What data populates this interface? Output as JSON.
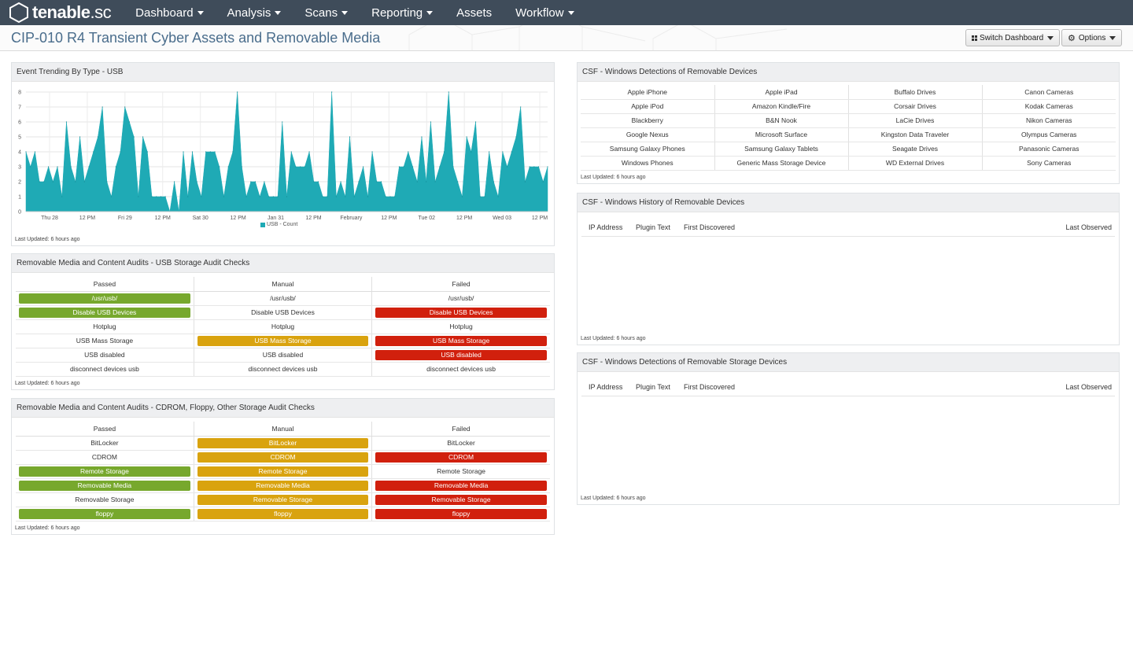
{
  "app": {
    "logo_text": "tenable",
    "logo_suffix": ".sc"
  },
  "nav": [
    {
      "label": "Dashboard",
      "dropdown": true
    },
    {
      "label": "Analysis",
      "dropdown": true
    },
    {
      "label": "Scans",
      "dropdown": true
    },
    {
      "label": "Reporting",
      "dropdown": true
    },
    {
      "label": "Assets",
      "dropdown": false
    },
    {
      "label": "Workflow",
      "dropdown": true
    }
  ],
  "page": {
    "title": "CIP-010 R4 Transient Cyber Assets and Removable Media",
    "switch_label": "Switch Dashboard",
    "options_label": "Options"
  },
  "colors": {
    "nav_bg": "#3f4c5a",
    "chart_fill": "#1faab5",
    "passed": "#77a82d",
    "manual": "#d9a30f",
    "failed": "#d1200d",
    "title": "#4a6d8c"
  },
  "icons": [
    "tenable-hexagon-icon",
    "grid-icon",
    "gear-icon",
    "caret-down-icon"
  ],
  "last_updated": "Last Updated: 6 hours ago",
  "event_chart": {
    "title": "Event Trending By Type - USB",
    "chart_data": {
      "type": "area",
      "series": [
        {
          "name": "USB - Count",
          "values": [
            4,
            3,
            4,
            2,
            2,
            3,
            2,
            3,
            1,
            6,
            3,
            2,
            5,
            2,
            3,
            4,
            5,
            7,
            2,
            1,
            3,
            4,
            7,
            6,
            5,
            1,
            5,
            4,
            1,
            1,
            1,
            1,
            0,
            2,
            0,
            4,
            1,
            4,
            2,
            1,
            4,
            4,
            4,
            3,
            1,
            3,
            4,
            8,
            3,
            1,
            2,
            2,
            1,
            2,
            1,
            1,
            1,
            6,
            1,
            4,
            3,
            3,
            3,
            4,
            2,
            2,
            1,
            1,
            8,
            1,
            2,
            1,
            5,
            1,
            2,
            3,
            1,
            4,
            2,
            2,
            1,
            1,
            1,
            3,
            3,
            4,
            3,
            2,
            5,
            2,
            6,
            2,
            3,
            4,
            8,
            3,
            2,
            1,
            5,
            4,
            6,
            1,
            1,
            4,
            2,
            1,
            4,
            3,
            4,
            5,
            7,
            2,
            3,
            3,
            3,
            2,
            3
          ]
        }
      ],
      "x_ticks": [
        "Thu 28",
        "12 PM",
        "Fri 29",
        "12 PM",
        "Sat 30",
        "12 PM",
        "Jan 31",
        "12 PM",
        "February",
        "12 PM",
        "Tue 02",
        "12 PM",
        "Wed 03",
        "12 PM"
      ],
      "y_ticks": [
        0,
        1,
        2,
        3,
        4,
        5,
        6,
        7,
        8
      ],
      "ylim": [
        0,
        8
      ],
      "grid": true,
      "legend": "bottom-center"
    }
  },
  "usb_audit": {
    "title": "Removable Media and Content Audits - USB Storage Audit Checks",
    "columns": [
      "Passed",
      "Manual",
      "Failed"
    ],
    "rows": [
      [
        {
          "t": "/usr/usb/",
          "s": "green"
        },
        {
          "t": "/usr/usb/",
          "s": ""
        },
        {
          "t": "/usr/usb/",
          "s": ""
        }
      ],
      [
        {
          "t": "Disable USB Devices",
          "s": "green"
        },
        {
          "t": "Disable USB Devices",
          "s": ""
        },
        {
          "t": "Disable USB Devices",
          "s": "red"
        }
      ],
      [
        {
          "t": "Hotplug",
          "s": ""
        },
        {
          "t": "Hotplug",
          "s": ""
        },
        {
          "t": "Hotplug",
          "s": ""
        }
      ],
      [
        {
          "t": "USB Mass Storage",
          "s": ""
        },
        {
          "t": "USB Mass Storage",
          "s": "yellow"
        },
        {
          "t": "USB Mass Storage",
          "s": "red"
        }
      ],
      [
        {
          "t": "USB disabled",
          "s": ""
        },
        {
          "t": "USB disabled",
          "s": ""
        },
        {
          "t": "USB disabled",
          "s": "red"
        }
      ],
      [
        {
          "t": "disconnect devices usb",
          "s": ""
        },
        {
          "t": "disconnect devices usb",
          "s": ""
        },
        {
          "t": "disconnect devices usb",
          "s": ""
        }
      ]
    ]
  },
  "cdrom_audit": {
    "title": "Removable Media and Content Audits - CDROM, Floppy, Other Storage Audit Checks",
    "columns": [
      "Passed",
      "Manual",
      "Failed"
    ],
    "rows": [
      [
        {
          "t": "BitLocker",
          "s": ""
        },
        {
          "t": "BitLocker",
          "s": "yellow"
        },
        {
          "t": "BitLocker",
          "s": ""
        }
      ],
      [
        {
          "t": "CDROM",
          "s": ""
        },
        {
          "t": "CDROM",
          "s": "yellow"
        },
        {
          "t": "CDROM",
          "s": "red"
        }
      ],
      [
        {
          "t": "Remote Storage",
          "s": "green"
        },
        {
          "t": "Remote Storage",
          "s": "yellow"
        },
        {
          "t": "Remote Storage",
          "s": ""
        }
      ],
      [
        {
          "t": "Removable Media",
          "s": "green"
        },
        {
          "t": "Removable Media",
          "s": "yellow"
        },
        {
          "t": "Removable Media",
          "s": "red"
        }
      ],
      [
        {
          "t": "Removable Storage",
          "s": ""
        },
        {
          "t": "Removable Storage",
          "s": "yellow"
        },
        {
          "t": "Removable Storage",
          "s": "red"
        }
      ],
      [
        {
          "t": "floppy",
          "s": "green"
        },
        {
          "t": "floppy",
          "s": "yellow"
        },
        {
          "t": "floppy",
          "s": "red"
        }
      ]
    ]
  },
  "detections": {
    "title": "CSF - Windows Detections of Removable Devices",
    "rows": [
      [
        "Apple iPhone",
        "Apple iPad",
        "Buffalo Drives",
        "Canon Cameras"
      ],
      [
        "Apple iPod",
        "Amazon Kindle/Fire",
        "Corsair Drives",
        "Kodak Cameras"
      ],
      [
        "Blackberry",
        "B&N Nook",
        "LaCie Drives",
        "Nikon Cameras"
      ],
      [
        "Google Nexus",
        "Microsoft Surface",
        "Kingston Data Traveler",
        "Olympus Cameras"
      ],
      [
        "Samsung Galaxy Phones",
        "Samsung Galaxy Tablets",
        "Seagate Drives",
        "Panasonic Cameras"
      ],
      [
        "Windows Phones",
        "Generic Mass Storage Device",
        "WD External Drives",
        "Sony Cameras"
      ]
    ]
  },
  "history": {
    "title": "CSF - Windows History of Removable Devices",
    "columns": [
      "IP Address",
      "Plugin Text",
      "First Discovered",
      "Last Observed"
    ]
  },
  "storage": {
    "title": "CSF - Windows Detections of Removable Storage Devices",
    "columns": [
      "IP Address",
      "Plugin Text",
      "First Discovered",
      "Last Observed"
    ]
  }
}
